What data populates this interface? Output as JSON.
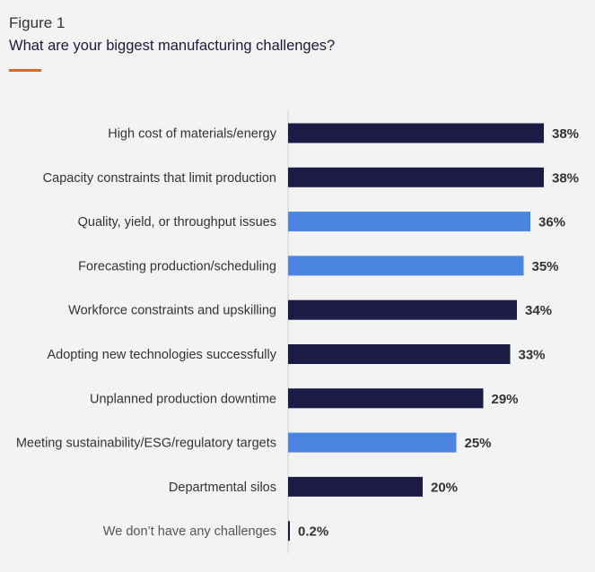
{
  "figure": {
    "label": "Figure 1",
    "title": "What are your biggest manufacturing challenges?",
    "accent_color": "#d86a2c"
  },
  "chart_data": {
    "type": "bar",
    "orientation": "horizontal",
    "categories": [
      "High cost of materials/energy",
      "Capacity constraints that limit production",
      "Quality, yield, or throughput issues",
      "Forecasting production/scheduling",
      "Workforce constraints and upskilling",
      "Adopting new technologies successfully",
      "Unplanned production downtime",
      "Meeting sustainability/ESG/regulatory targets",
      "Departmental silos",
      "We don’t have any challenges"
    ],
    "values": [
      38,
      38,
      36,
      35,
      34,
      33,
      29,
      25,
      20,
      0.2
    ],
    "value_labels": [
      "38%",
      "38%",
      "36%",
      "35%",
      "34%",
      "33%",
      "29%",
      "25%",
      "20%",
      "0.2%"
    ],
    "colors": [
      "#1b1b45",
      "#1b1b45",
      "#4a86e0",
      "#4a86e0",
      "#1b1b45",
      "#1b1b45",
      "#1b1b45",
      "#4a86e0",
      "#1b1b45",
      "#1b1b45"
    ],
    "label_colors": [
      "#333333",
      "#333333",
      "#333333",
      "#333333",
      "#333333",
      "#333333",
      "#333333",
      "#333333",
      "#333333",
      "#555555"
    ],
    "unit": "%",
    "xlim": [
      0,
      40
    ],
    "grid": false,
    "legend": "none"
  }
}
